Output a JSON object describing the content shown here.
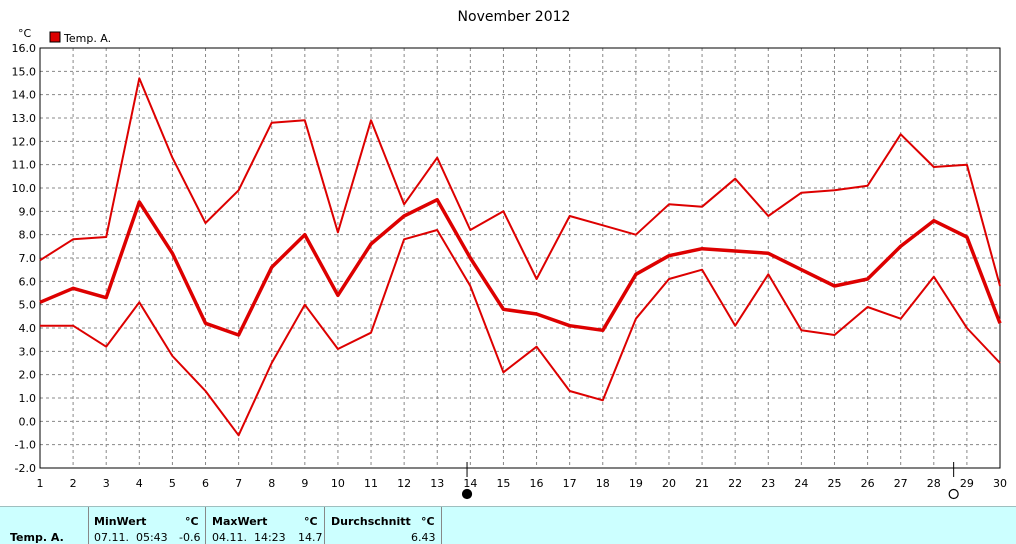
{
  "chart_data": {
    "type": "line",
    "title": "November 2012",
    "unit_label": "°C",
    "legend": {
      "label": "Temp. A.",
      "color": "#dd0000",
      "placement": "top-left"
    },
    "categories": [
      "1",
      "2",
      "3",
      "4",
      "5",
      "6",
      "7",
      "8",
      "9",
      "10",
      "11",
      "12",
      "13",
      "14",
      "15",
      "16",
      "17",
      "18",
      "19",
      "20",
      "21",
      "22",
      "23",
      "24",
      "25",
      "26",
      "27",
      "28",
      "29",
      "30"
    ],
    "y_ticks": [
      "-2.0",
      "-1.0",
      "0.0",
      "1.0",
      "2.0",
      "3.0",
      "4.0",
      "5.0",
      "6.0",
      "7.0",
      "8.0",
      "9.0",
      "10.0",
      "11.0",
      "12.0",
      "13.0",
      "14.0",
      "15.0",
      "16.0"
    ],
    "ylim": [
      -2,
      16
    ],
    "grid": true,
    "series": [
      {
        "values": [
          6.9,
          7.8,
          7.9,
          14.7,
          11.3,
          8.5,
          9.9,
          12.8,
          12.9,
          8.1,
          12.9,
          9.3,
          11.3,
          8.2,
          9.0,
          6.1,
          8.8,
          8.4,
          8.0,
          9.3,
          9.2,
          10.4,
          8.8,
          9.8,
          9.9,
          10.1,
          12.3,
          10.9,
          11.0,
          5.8
        ],
        "color": "#dd0000",
        "width": 2
      },
      {
        "values": [
          5.1,
          5.7,
          5.3,
          9.4,
          7.2,
          4.2,
          3.7,
          6.6,
          8.0,
          5.4,
          7.6,
          8.8,
          9.5,
          7.0,
          4.8,
          4.6,
          4.1,
          3.9,
          6.3,
          7.1,
          7.4,
          7.3,
          7.2,
          6.5,
          5.8,
          6.1,
          7.5,
          8.6,
          7.9,
          4.2
        ],
        "color": "#dd0000",
        "width": 3.5
      },
      {
        "values": [
          4.1,
          4.1,
          3.2,
          5.1,
          2.8,
          1.3,
          -0.6,
          2.5,
          5.0,
          3.1,
          3.8,
          7.8,
          8.2,
          5.8,
          2.1,
          3.2,
          1.3,
          0.9,
          4.4,
          6.1,
          6.5,
          4.1,
          6.3,
          3.9,
          3.7,
          4.9,
          4.4,
          6.2,
          4.0,
          2.5
        ],
        "color": "#dd0000",
        "width": 2
      }
    ],
    "moon_markers": [
      {
        "x": 13.9,
        "phase": "full",
        "fill": "#000000"
      },
      {
        "x": 28.6,
        "phase": "new",
        "fill": "#ffffff"
      }
    ]
  },
  "stats": {
    "series_label": "Temp. A.",
    "min": {
      "header": "MinWert",
      "unit": "°C",
      "datetime": "07.11.  05:43",
      "value": "-0.6"
    },
    "max": {
      "header": "MaxWert",
      "unit": "°C",
      "datetime": "04.11.  14:23",
      "value": "14.7"
    },
    "avg": {
      "header": "Durchschnitt",
      "unit": "°C",
      "value": "6.43"
    }
  }
}
